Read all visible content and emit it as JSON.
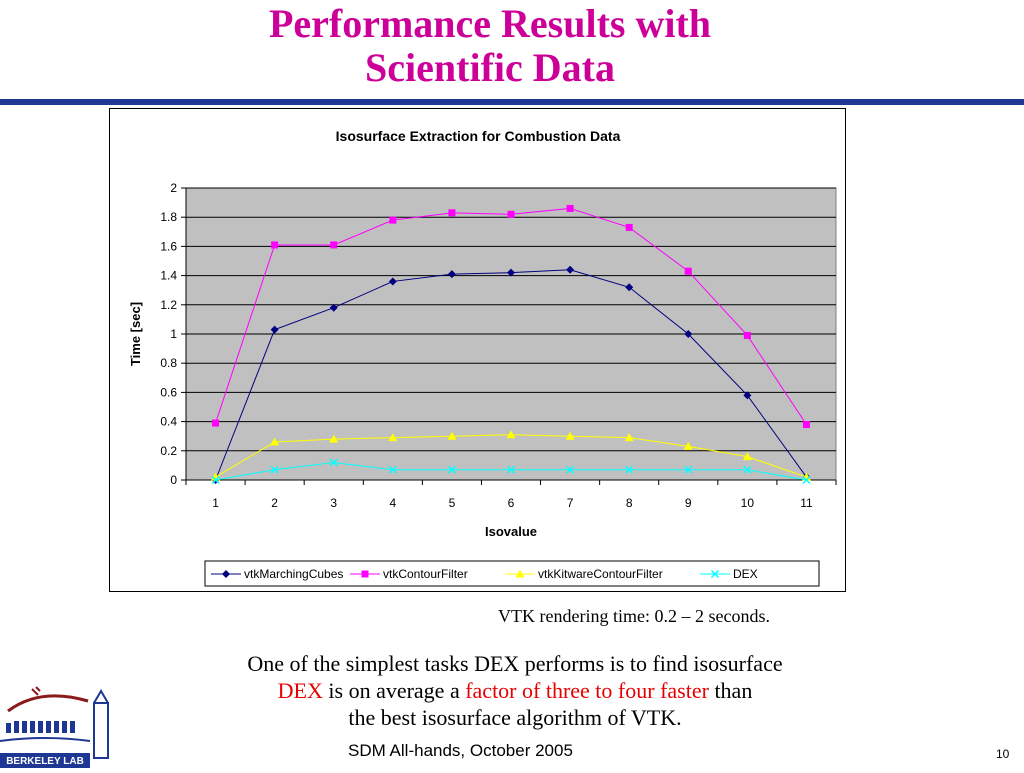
{
  "slide": {
    "title_line1": "Performance Results with",
    "title_line2": "Scientific Data",
    "caption": "VTK rendering time: 0.2 – 2 seconds.",
    "body_line1": "One of the simplest tasks DEX performs is to find isosurface",
    "body_line2_a": "DEX",
    "body_line2_b": " is on average a ",
    "body_line2_c": "factor of three to four faster",
    "body_line2_d": " than",
    "body_line3": "the best isosurface algorithm of VTK.",
    "footer": "SDM All-hands, October 2005",
    "page_number": "10",
    "logo_text": "BERKELEY LAB"
  },
  "colors": {
    "title": "#cc0099",
    "rule": "#1f3794",
    "plot_bg": "#c0c0c0",
    "emphasis": "#e60000"
  },
  "chart_data": {
    "type": "line",
    "title": "Isosurface Extraction for Combustion Data",
    "xlabel": "Isovalue",
    "ylabel": "Time [sec]",
    "x": [
      1,
      2,
      3,
      4,
      5,
      6,
      7,
      8,
      9,
      10,
      11
    ],
    "ylim": [
      0,
      2
    ],
    "yticks": [
      0,
      0.2,
      0.4,
      0.6,
      0.8,
      1,
      1.2,
      1.4,
      1.6,
      1.8,
      2
    ],
    "grid": "horizontal",
    "legend": "bottom",
    "series": [
      {
        "name": "vtkMarchingCubes",
        "color": "#000080",
        "marker": "diamond",
        "values": [
          0.0,
          1.03,
          1.18,
          1.36,
          1.41,
          1.42,
          1.44,
          1.32,
          1.0,
          0.58,
          0.02
        ]
      },
      {
        "name": "vtkContourFilter",
        "color": "#ff00ff",
        "marker": "square",
        "values": [
          0.39,
          1.61,
          1.61,
          1.78,
          1.83,
          1.82,
          1.86,
          1.73,
          1.43,
          0.99,
          0.38
        ]
      },
      {
        "name": "vtkKitwareContourFilter",
        "color": "#ffff00",
        "marker": "triangle",
        "values": [
          0.02,
          0.26,
          0.28,
          0.29,
          0.3,
          0.31,
          0.3,
          0.29,
          0.23,
          0.16,
          0.02
        ]
      },
      {
        "name": "DEX",
        "color": "#00ffff",
        "marker": "x",
        "values": [
          0.0,
          0.07,
          0.12,
          0.07,
          0.07,
          0.07,
          0.07,
          0.07,
          0.07,
          0.07,
          0.0
        ]
      }
    ]
  }
}
